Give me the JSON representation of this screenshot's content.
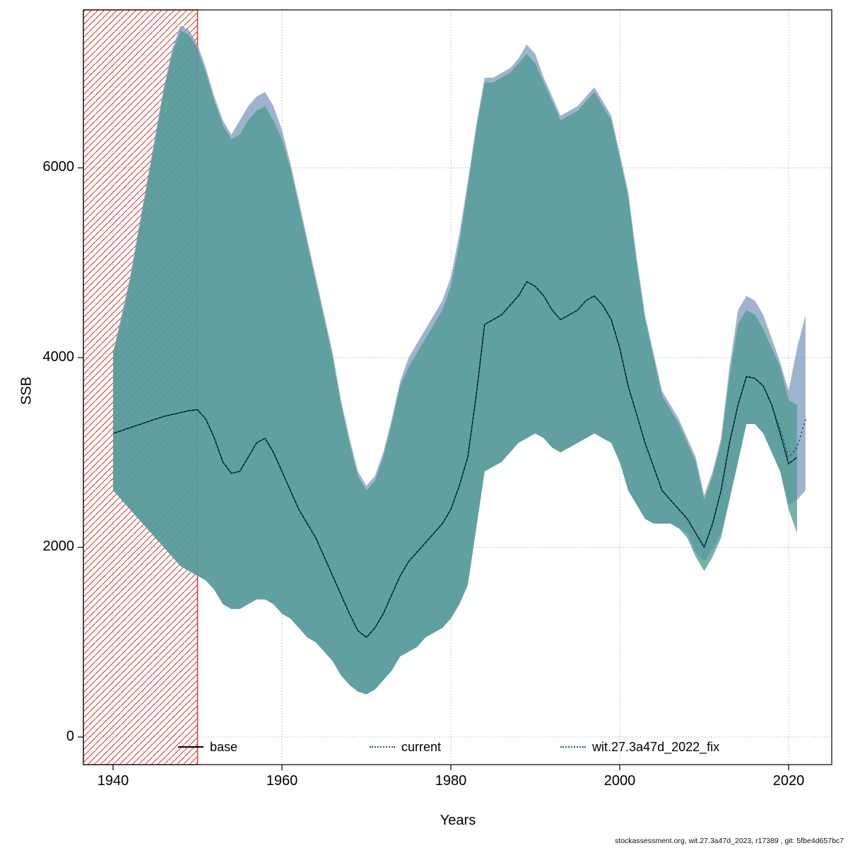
{
  "figure": {
    "xlabel": "Years",
    "ylabel": "SSB",
    "footer": "stockassessment.org, wit.27.3a47d_2023, r17389 , git: 5fbe4d657bc7"
  },
  "legend": {
    "items": [
      {
        "label": "base",
        "color": "#000000",
        "line": "solid"
      },
      {
        "label": "current",
        "color": "#27508C",
        "line": "dotted"
      },
      {
        "label": "wit.27.3a47d_2022_fix",
        "color": "#1A5E58",
        "line": "dotted"
      }
    ]
  },
  "chart_data": {
    "type": "line",
    "title": "",
    "xlabel": "Years",
    "ylabel": "SSB",
    "xlim": [
      1936.5,
      2025
    ],
    "ylim": [
      -290,
      7660
    ],
    "xticks": [
      1940,
      1960,
      1980,
      2000,
      2020
    ],
    "yticks": [
      0,
      2000,
      4000,
      6000
    ],
    "grid": "dotted",
    "hatched_region": {
      "x0": 1936.5,
      "x1": 1950,
      "color": "#D93025",
      "style": "diagonal-hatch"
    },
    "series": [
      {
        "name": "current",
        "color": "#27508C",
        "band_color": "#7E99BC",
        "line": "dotted",
        "year_start": 1940,
        "median": [
          3200,
          3230,
          3260,
          3290,
          3320,
          3350,
          3380,
          3400,
          3420,
          3440,
          3450,
          3350,
          3150,
          2900,
          2780,
          2800,
          2950,
          3100,
          3150,
          3000,
          2800,
          2600,
          2400,
          2250,
          2100,
          1900,
          1700,
          1500,
          1300,
          1120,
          1050,
          1150,
          1300,
          1500,
          1700,
          1850,
          1950,
          2050,
          2150,
          2250,
          2400,
          2650,
          2950,
          3600,
          4350,
          4400,
          4450,
          4550,
          4650,
          4800,
          4750,
          4650,
          4500,
          4400,
          4450,
          4500,
          4600,
          4650,
          4550,
          4400,
          4100,
          3700,
          3400,
          3100,
          2850,
          2600,
          2500,
          2400,
          2300,
          2150,
          2000,
          2250,
          2600,
          3100,
          3500,
          3800,
          3780,
          3700,
          3500,
          3250,
          2950,
          3050,
          3350
        ],
        "lo": [
          2600,
          2500,
          2400,
          2300,
          2200,
          2100,
          2000,
          1900,
          1800,
          1750,
          1700,
          1650,
          1550,
          1400,
          1350,
          1350,
          1400,
          1450,
          1450,
          1400,
          1300,
          1250,
          1150,
          1050,
          1000,
          900,
          800,
          650,
          550,
          480,
          450,
          500,
          600,
          700,
          850,
          900,
          950,
          1050,
          1100,
          1150,
          1250,
          1400,
          1600,
          2200,
          2800,
          2850,
          2900,
          3000,
          3100,
          3150,
          3200,
          3150,
          3050,
          3000,
          3050,
          3100,
          3150,
          3200,
          3150,
          3100,
          2900,
          2600,
          2450,
          2300,
          2250,
          2250,
          2250,
          2200,
          2150,
          1950,
          1850,
          1980,
          2150,
          2500,
          2900,
          3300,
          3300,
          3200,
          3000,
          2800,
          2450,
          2500,
          2600
        ],
        "hi": [
          4050,
          4450,
          4850,
          5350,
          5850,
          6350,
          6850,
          7250,
          7500,
          7450,
          7300,
          7050,
          6750,
          6500,
          6350,
          6500,
          6650,
          6750,
          6800,
          6650,
          6400,
          6050,
          5650,
          5250,
          4850,
          4450,
          4050,
          3550,
          3150,
          2800,
          2650,
          2750,
          3000,
          3350,
          3750,
          4000,
          4150,
          4300,
          4450,
          4600,
          4850,
          5300,
          5850,
          6450,
          6950,
          6950,
          7000,
          7050,
          7150,
          7300,
          7200,
          6950,
          6750,
          6550,
          6600,
          6650,
          6750,
          6850,
          6700,
          6550,
          6150,
          5750,
          5050,
          4450,
          4050,
          3650,
          3500,
          3350,
          3150,
          2950,
          2550,
          2800,
          3150,
          3900,
          4500,
          4650,
          4600,
          4450,
          4200,
          3950,
          3650,
          4100,
          4450
        ]
      },
      {
        "name": "wit.27.3a47d_2022_fix",
        "color": "#1A5E58",
        "band_color": "#4E9B94",
        "line": "dotted",
        "year_start": 1940,
        "median": [
          3200,
          3230,
          3260,
          3290,
          3320,
          3350,
          3380,
          3400,
          3420,
          3440,
          3450,
          3350,
          3150,
          2900,
          2780,
          2800,
          2950,
          3100,
          3150,
          3000,
          2800,
          2600,
          2400,
          2250,
          2100,
          1900,
          1700,
          1500,
          1300,
          1120,
          1050,
          1150,
          1300,
          1500,
          1700,
          1850,
          1950,
          2050,
          2150,
          2250,
          2400,
          2650,
          2950,
          3600,
          4350,
          4400,
          4450,
          4550,
          4650,
          4800,
          4750,
          4650,
          4500,
          4400,
          4450,
          4500,
          4600,
          4650,
          4550,
          4400,
          4100,
          3700,
          3400,
          3100,
          2850,
          2600,
          2500,
          2400,
          2300,
          2150,
          2000,
          2250,
          2600,
          3100,
          3500,
          3800,
          3780,
          3700,
          3500,
          3200,
          2880,
          2950
        ],
        "lo": [
          2600,
          2500,
          2400,
          2300,
          2200,
          2100,
          2000,
          1900,
          1800,
          1750,
          1700,
          1650,
          1550,
          1400,
          1350,
          1350,
          1400,
          1450,
          1450,
          1400,
          1300,
          1250,
          1150,
          1050,
          1000,
          900,
          800,
          650,
          550,
          480,
          450,
          500,
          600,
          700,
          850,
          900,
          950,
          1050,
          1100,
          1150,
          1250,
          1400,
          1600,
          2200,
          2800,
          2850,
          2900,
          3000,
          3100,
          3150,
          3200,
          3150,
          3050,
          3000,
          3050,
          3100,
          3150,
          3200,
          3150,
          3100,
          2900,
          2600,
          2450,
          2300,
          2250,
          2250,
          2250,
          2200,
          2100,
          1900,
          1750,
          1900,
          2100,
          2500,
          2900,
          3300,
          3300,
          3200,
          3000,
          2800,
          2400,
          2150
        ],
        "hi": [
          4050,
          4400,
          4800,
          5300,
          5800,
          6300,
          6800,
          7200,
          7450,
          7400,
          7250,
          7000,
          6700,
          6450,
          6300,
          6350,
          6500,
          6600,
          6650,
          6500,
          6300,
          6000,
          5600,
          5200,
          4800,
          4400,
          4000,
          3500,
          3100,
          2750,
          2600,
          2700,
          2950,
          3300,
          3700,
          3900,
          4050,
          4200,
          4350,
          4500,
          4750,
          5200,
          5800,
          6400,
          6900,
          6900,
          6950,
          7000,
          7100,
          7200,
          7100,
          6900,
          6700,
          6500,
          6550,
          6600,
          6700,
          6800,
          6650,
          6500,
          6100,
          5700,
          5000,
          4400,
          4000,
          3600,
          3450,
          3300,
          3100,
          2900,
          2500,
          2750,
          3100,
          3800,
          4350,
          4500,
          4450,
          4300,
          4100,
          3900,
          3550,
          3500
        ]
      },
      {
        "name": "base",
        "color": "#000000",
        "line": "solid",
        "median_same_as": "wit.27.3a47d_2022_fix"
      }
    ]
  }
}
